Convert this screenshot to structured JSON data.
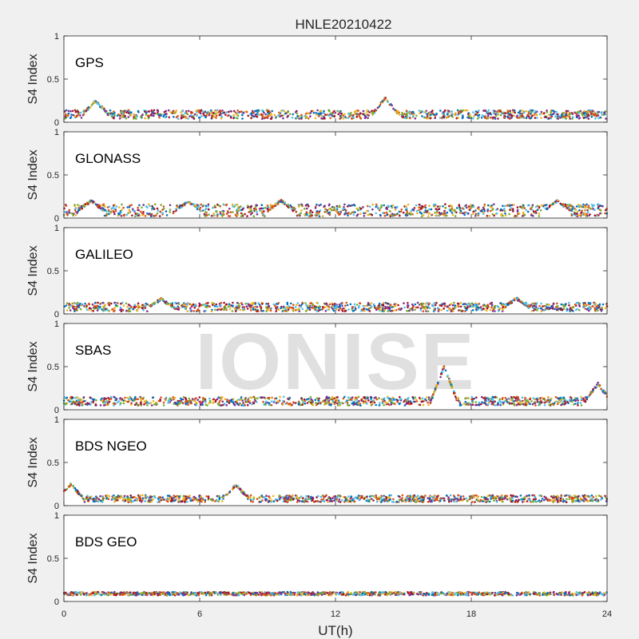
{
  "title": "HNLE20210422",
  "watermark": "IONISE",
  "colors": [
    "#0072BD",
    "#D95319",
    "#EDB120",
    "#7E2F8E",
    "#77AC30",
    "#4DBEEE",
    "#A2142F"
  ],
  "chart_data": {
    "type": "scatter",
    "title": "HNLE20210422",
    "xlabel": "UT(h)",
    "ylabel": "S4 Index",
    "xlim": [
      0,
      24
    ],
    "ylim": [
      0,
      1
    ],
    "xticks": [
      "0",
      "6",
      "12",
      "18",
      "24"
    ],
    "yticks": [
      "0",
      "0.5",
      "1"
    ],
    "grid": false,
    "panels": [
      {
        "name": "GPS",
        "baseline": 0.09,
        "spread": 0.05,
        "bumps": [
          {
            "x": 14.2,
            "y": 0.28
          },
          {
            "x": 1.4,
            "y": 0.25
          }
        ]
      },
      {
        "name": "GLONASS",
        "baseline": 0.09,
        "spread": 0.07,
        "bumps": [
          {
            "x": 1.2,
            "y": 0.2
          },
          {
            "x": 5.5,
            "y": 0.19
          },
          {
            "x": 9.6,
            "y": 0.2
          },
          {
            "x": 21.8,
            "y": 0.2
          }
        ]
      },
      {
        "name": "GALILEO",
        "baseline": 0.08,
        "spread": 0.05,
        "bumps": [
          {
            "x": 4.3,
            "y": 0.17
          },
          {
            "x": 20.0,
            "y": 0.18
          }
        ]
      },
      {
        "name": "SBAS",
        "baseline": 0.1,
        "spread": 0.05,
        "bumps": [
          {
            "x": 16.8,
            "y": 0.5
          },
          {
            "x": 23.6,
            "y": 0.3
          }
        ]
      },
      {
        "name": "BDS NGEO",
        "baseline": 0.08,
        "spread": 0.04,
        "bumps": [
          {
            "x": 0.3,
            "y": 0.25
          },
          {
            "x": 7.6,
            "y": 0.24
          }
        ]
      },
      {
        "name": "BDS GEO",
        "baseline": 0.09,
        "spread": 0.02,
        "bumps": []
      }
    ]
  }
}
